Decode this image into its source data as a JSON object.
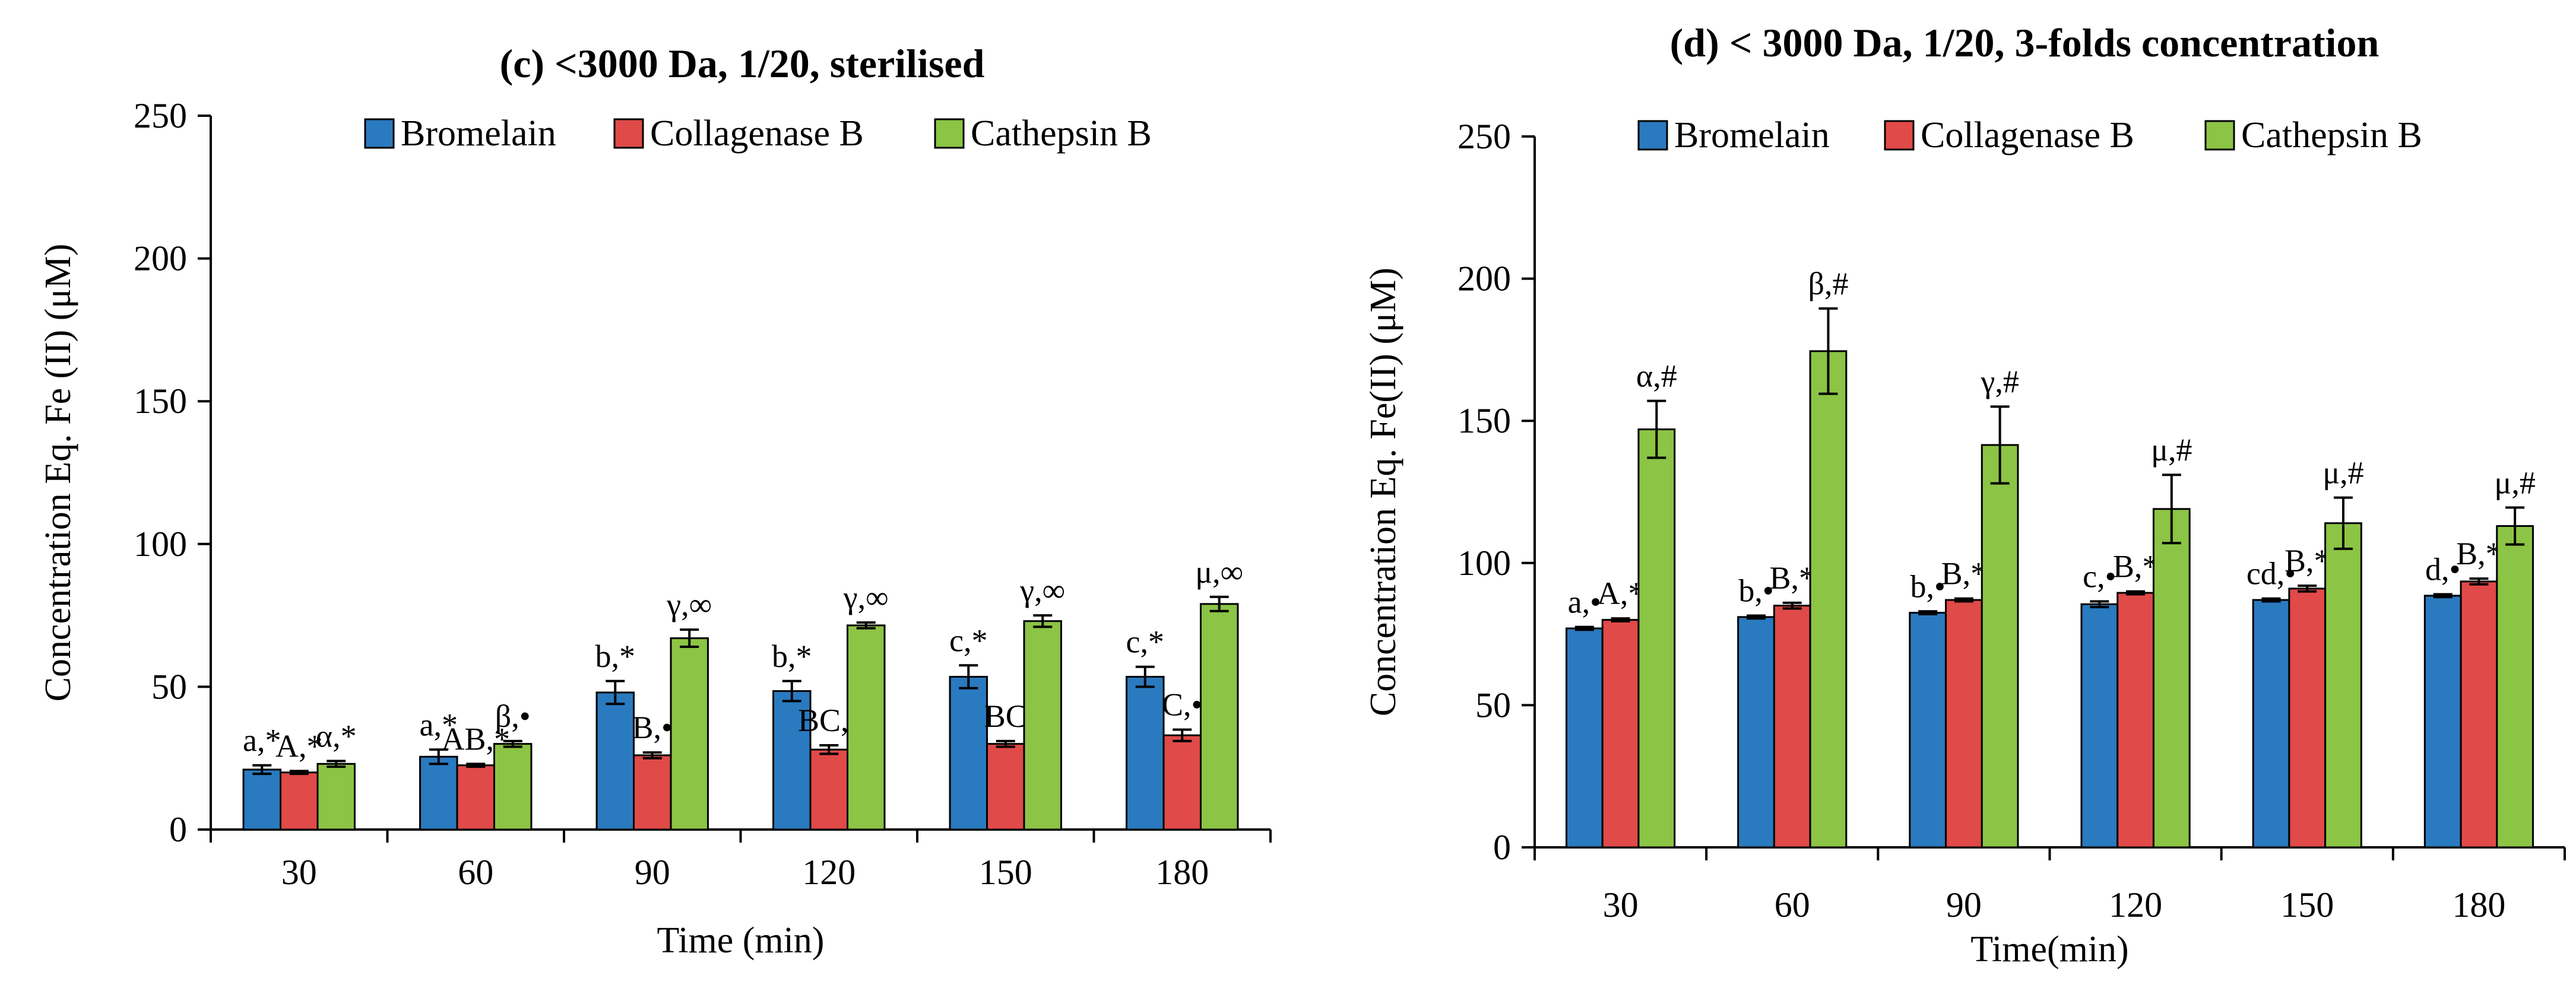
{
  "chart_data": [
    {
      "type": "bar",
      "title": "(c)  <3000 Da, 1/20, sterilised",
      "xlabel": "Time (min)",
      "ylabel": "Concentration Eq. Fe (II) (μM)",
      "ylim": [
        0,
        250
      ],
      "yticks": [
        "0",
        "50",
        "100",
        "150",
        "200",
        "250"
      ],
      "categories": [
        "30",
        "60",
        "90",
        "120",
        "150",
        "180"
      ],
      "legend_position": "top",
      "series": [
        {
          "name": "Bromelain",
          "color": "#2a7abf",
          "values": [
            21,
            25.5,
            48,
            48.5,
            53.5,
            53.5
          ],
          "errors": [
            1.5,
            2.5,
            4,
            3.5,
            4,
            3.5
          ],
          "labels": [
            "a,*",
            "a,*",
            "b,*",
            "b,*",
            "c,*",
            "c,*"
          ]
        },
        {
          "name": "Collagenase B",
          "color": "#e04a48",
          "values": [
            20,
            22.5,
            26,
            28,
            30,
            33
          ],
          "errors": [
            0.5,
            0.5,
            1,
            1.5,
            1,
            2
          ],
          "labels": [
            "A,*",
            "AB,*",
            "B,•",
            "BC,•",
            "BC",
            "C,•"
          ]
        },
        {
          "name": "Cathepsin B",
          "color": "#8cc445",
          "values": [
            23,
            30,
            67,
            71.5,
            73,
            79
          ],
          "errors": [
            1,
            1,
            3,
            1,
            2,
            2.5
          ],
          "labels": [
            "α,*",
            "β,•",
            "γ,∞",
            "γ,∞",
            "γ,∞",
            "μ,∞"
          ]
        }
      ]
    },
    {
      "type": "bar",
      "title": "(d)  < 3000 Da, 1/20,  3-folds concentration",
      "xlabel": "Time(min)",
      "ylabel": "Concentration Eq. Fe(II) (μM)",
      "ylim": [
        0,
        250
      ],
      "yticks": [
        "0",
        "50",
        "100",
        "150",
        "200",
        "250"
      ],
      "categories": [
        "30",
        "60",
        "90",
        "120",
        "150",
        "180"
      ],
      "legend_position": "top",
      "series": [
        {
          "name": "Bromelain",
          "color": "#2a7abf",
          "values": [
            77,
            81,
            82.5,
            85.5,
            87,
            88.5
          ],
          "errors": [
            0.5,
            0.5,
            0.5,
            1,
            0.5,
            0.5
          ],
          "labels": [
            "a,•",
            "b,•",
            "b,•",
            "c,•",
            "cd,•",
            "d,•"
          ]
        },
        {
          "name": "Collagenase B",
          "color": "#e04a48",
          "values": [
            80,
            85,
            87,
            89.5,
            91,
            93.5
          ],
          "errors": [
            0.5,
            1,
            0.5,
            0.5,
            1,
            1
          ],
          "labels": [
            "A,*",
            "B,*",
            "B,*",
            "B,*",
            "B,*",
            "B,*"
          ]
        },
        {
          "name": "Cathepsin B",
          "color": "#8cc445",
          "values": [
            147,
            174.5,
            141.5,
            119,
            114,
            113
          ],
          "errors": [
            10,
            15,
            13.5,
            12,
            9,
            6.5
          ],
          "labels": [
            "α,#",
            "β,#",
            "γ,#",
            "μ,#",
            "μ,#",
            "μ,#"
          ]
        }
      ]
    }
  ]
}
